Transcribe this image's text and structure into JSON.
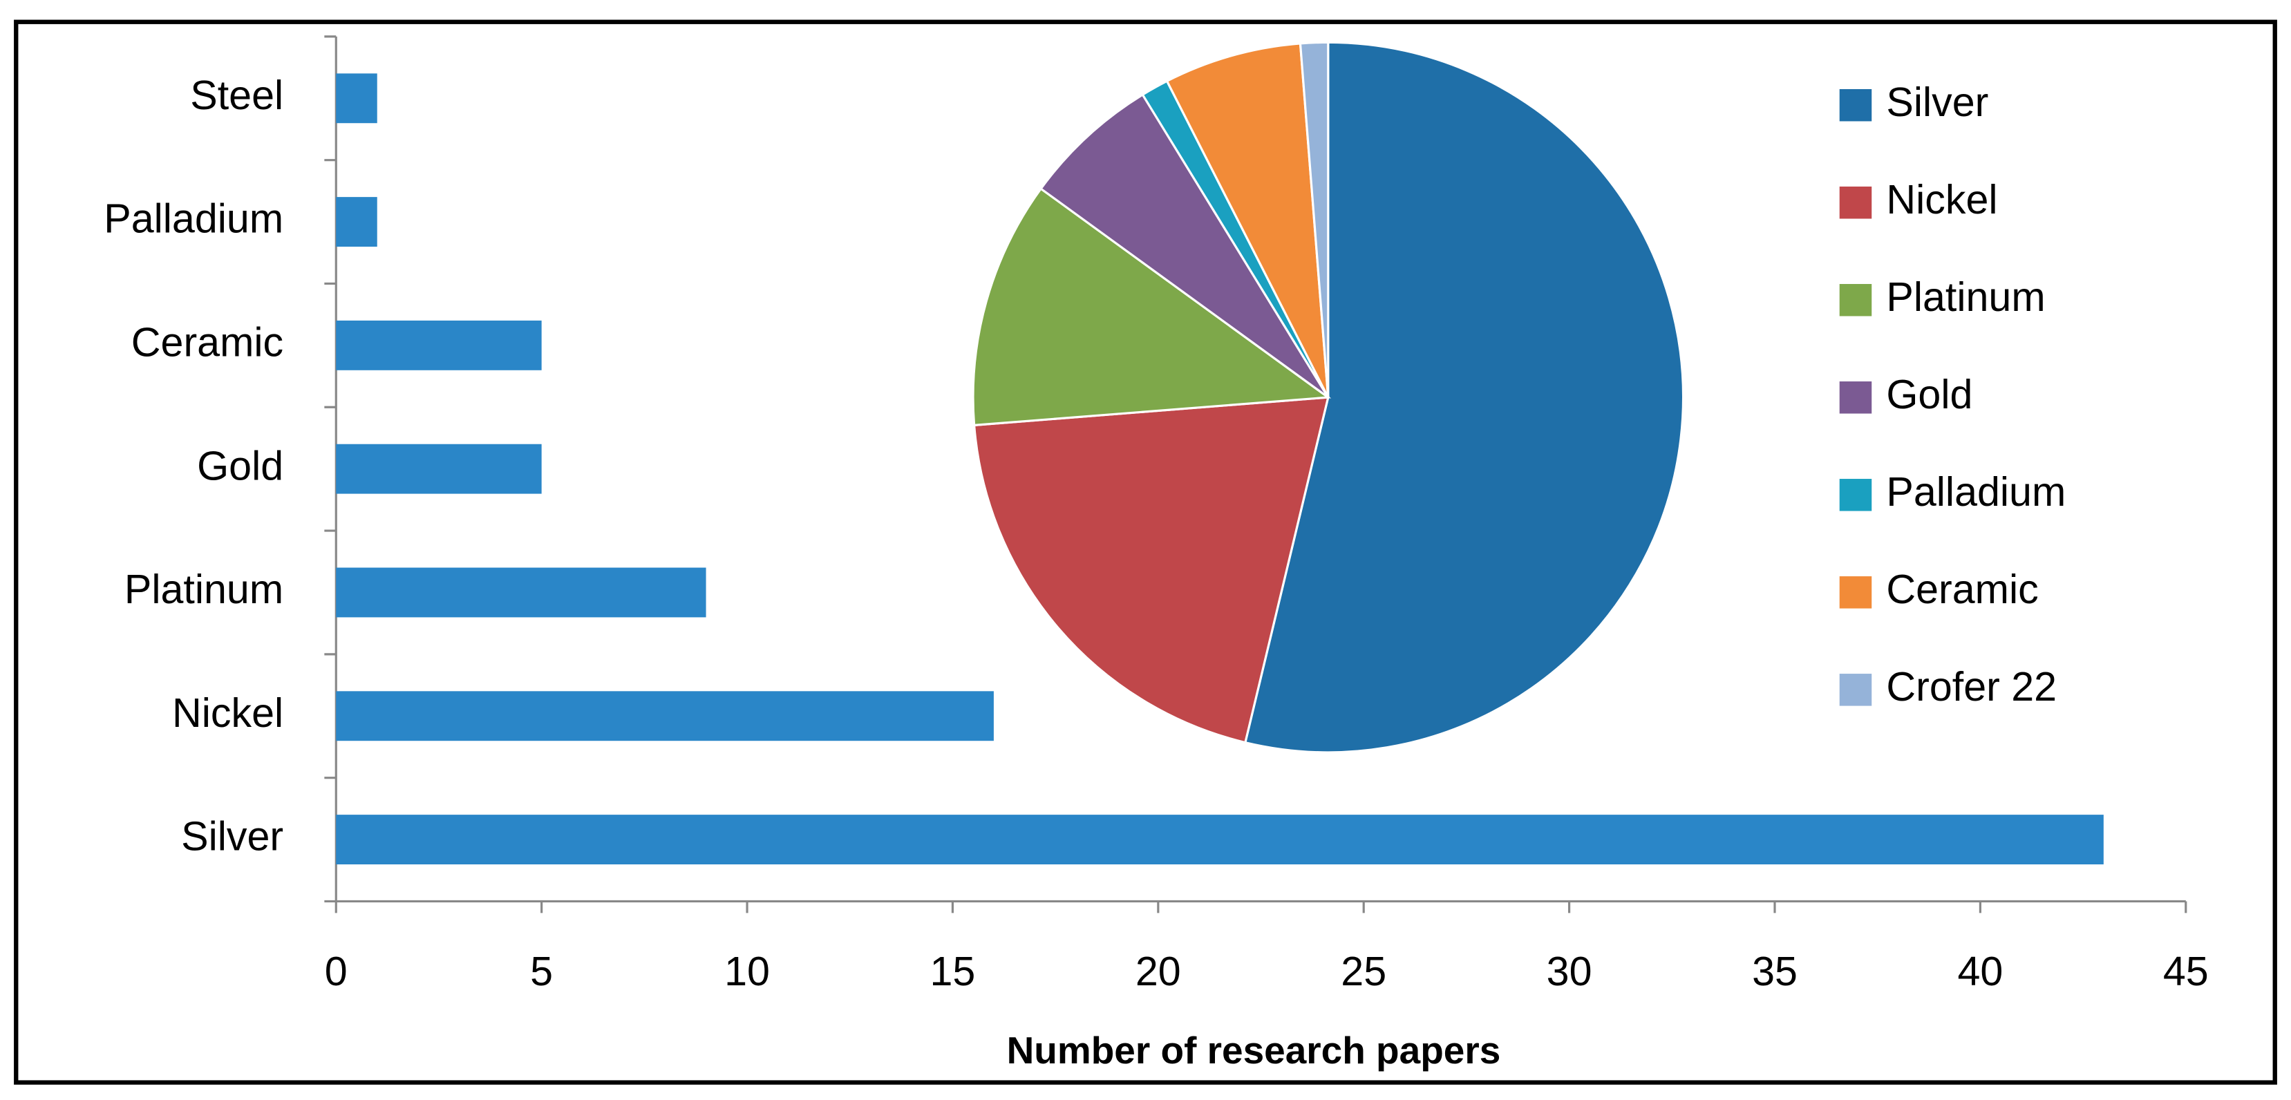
{
  "chart_data": [
    {
      "type": "hbar",
      "categories": [
        "Steel",
        "Palladium",
        "Ceramic",
        "Gold",
        "Platinum",
        "Nickel",
        "Silver"
      ],
      "values": [
        1,
        1,
        5,
        5,
        9,
        16,
        43
      ],
      "color": "#2a86c8",
      "xlabel": "Number of research papers",
      "xlim": [
        0,
        45
      ],
      "xticks": [
        0,
        5,
        10,
        15,
        20,
        25,
        30,
        35,
        40,
        45
      ]
    },
    {
      "type": "pie",
      "categories": [
        "Silver",
        "Nickel",
        "Platinum",
        "Gold",
        "Palladium",
        "Ceramic",
        "Crofer 22"
      ],
      "values": [
        43,
        16,
        9,
        5,
        1,
        5,
        1
      ],
      "colors": [
        "#1f6fa8",
        "#c0474a",
        "#7ea84a",
        "#7b5a93",
        "#1aa0c0",
        "#f28b38",
        "#95b3d9"
      ]
    }
  ]
}
